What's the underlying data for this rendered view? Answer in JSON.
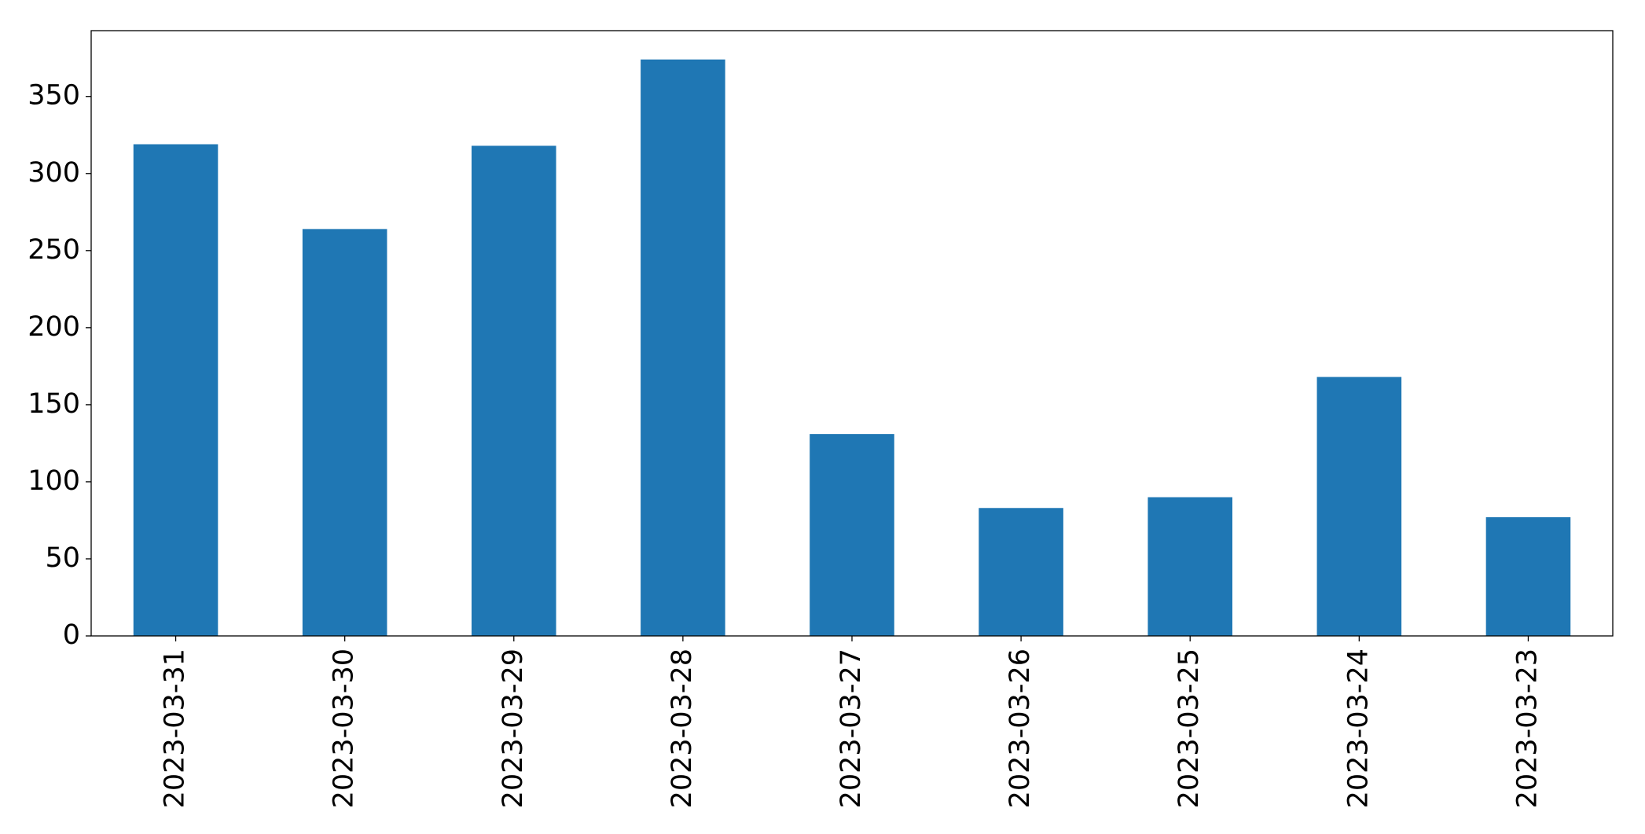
{
  "chart_data": {
    "type": "bar",
    "categories": [
      "2023-03-31",
      "2023-03-30",
      "2023-03-29",
      "2023-03-28",
      "2023-03-27",
      "2023-03-26",
      "2023-03-25",
      "2023-03-24",
      "2023-03-23"
    ],
    "values": [
      319,
      264,
      318,
      374,
      131,
      83,
      90,
      168,
      77
    ],
    "color": "#1f77b4",
    "ylim": [
      0,
      392.7
    ],
    "yticks": [
      0,
      50,
      100,
      150,
      200,
      250,
      300,
      350
    ],
    "grid": false
  }
}
